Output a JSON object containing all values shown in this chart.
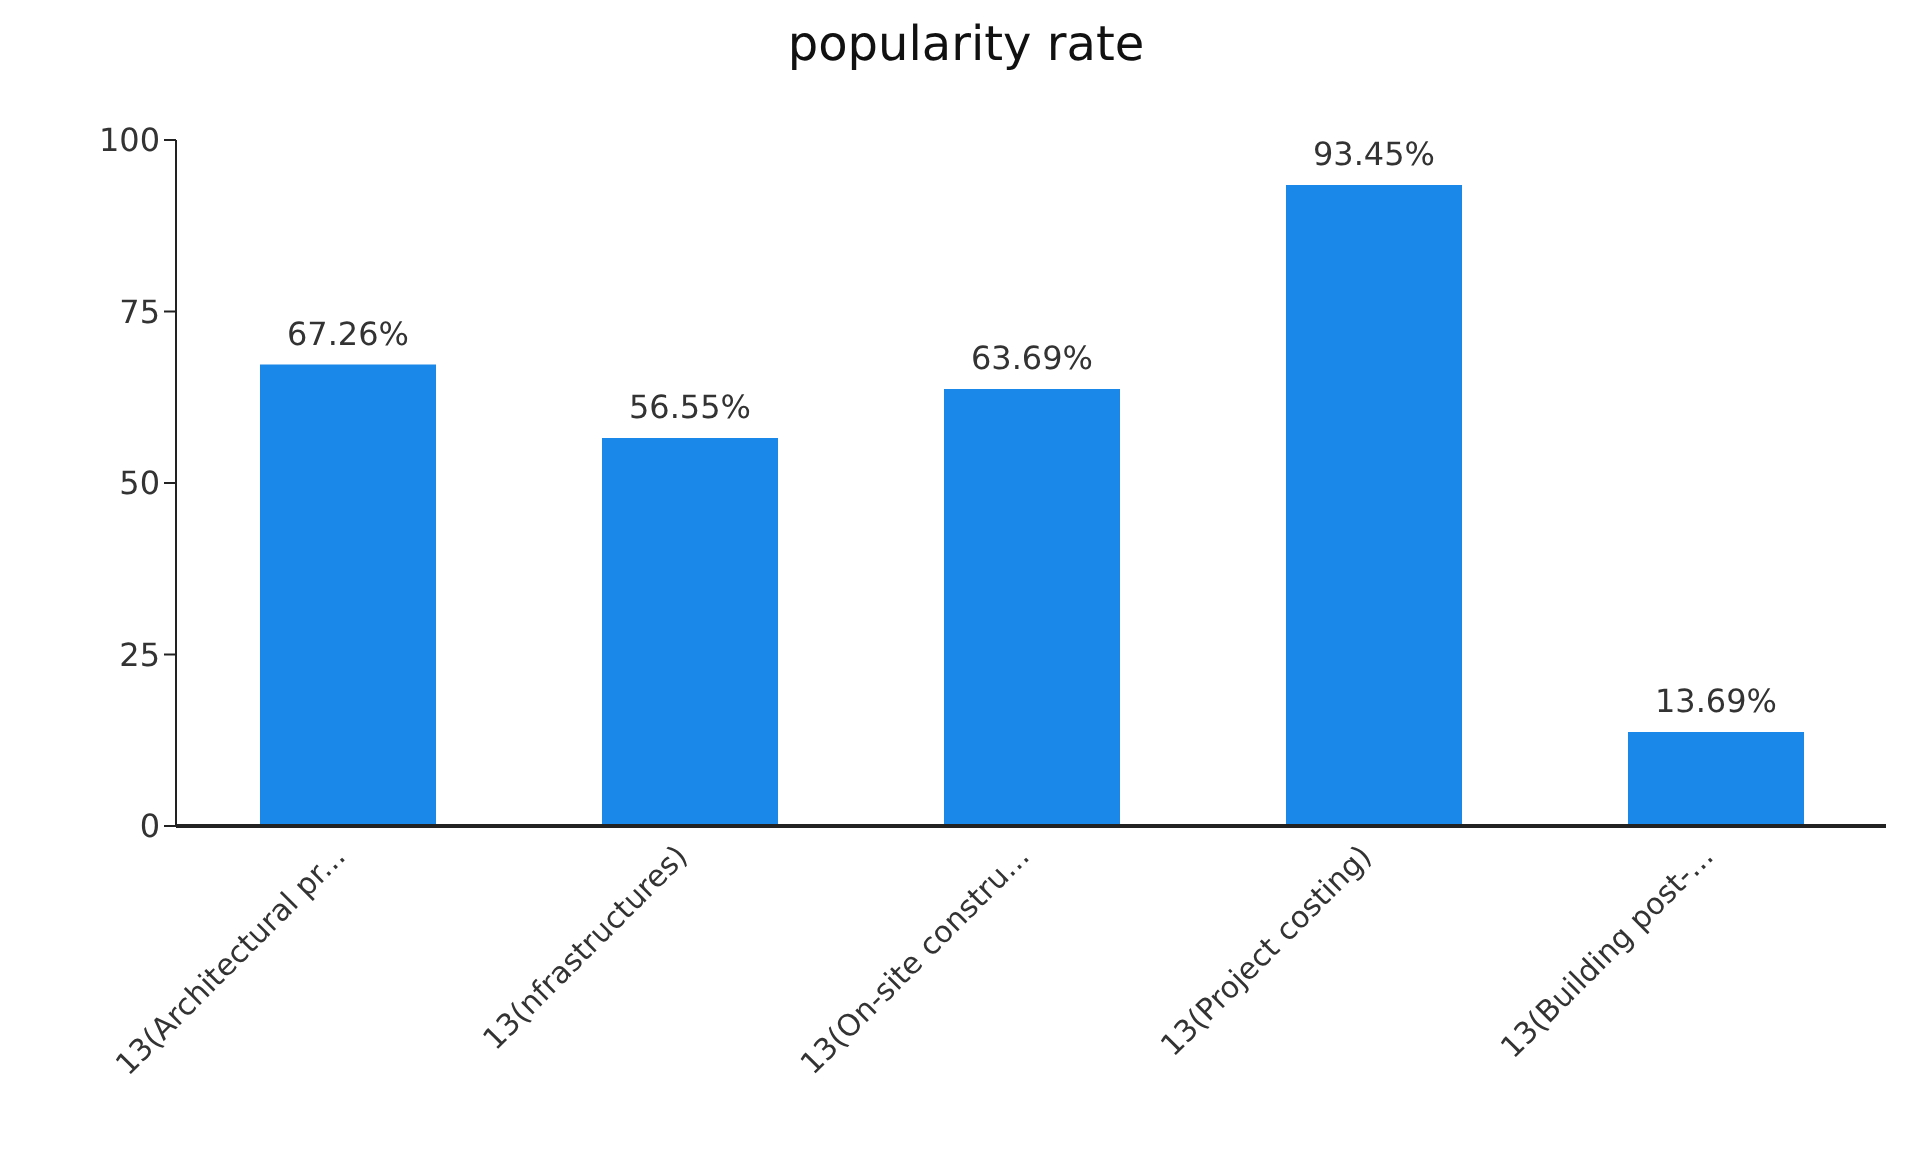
{
  "chart_data": {
    "type": "bar",
    "title": "popularity rate",
    "categories": [
      "13(Architectural pr...",
      "13(nfrastructures)",
      "13(On-site constru...",
      "13(Project costing)",
      "13(Building post-..."
    ],
    "values": [
      67.26,
      56.55,
      63.69,
      93.45,
      13.69
    ],
    "value_labels": [
      "67.26%",
      "56.55%",
      "63.69%",
      "93.45%",
      "13.69%"
    ],
    "color": "#1a88e8",
    "ylim": [
      0,
      100
    ],
    "yticks": [
      0,
      25,
      50,
      75,
      100
    ],
    "grid": false,
    "legend": false
  }
}
